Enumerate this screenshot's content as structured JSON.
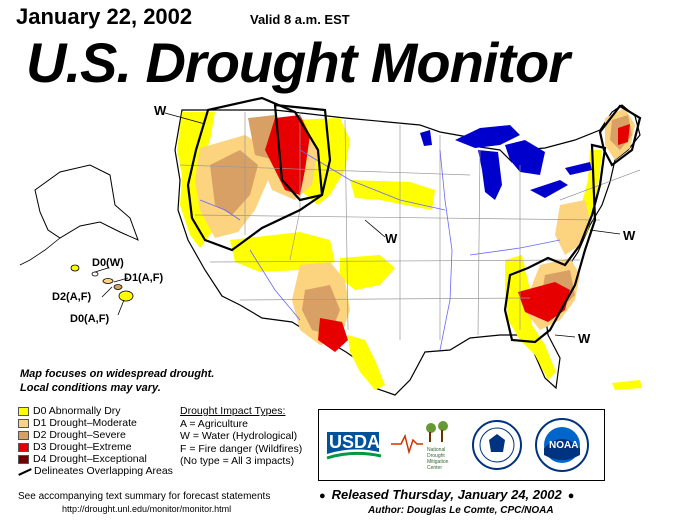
{
  "header": {
    "date": "January 22, 2002",
    "valid": "Valid 8 a.m. EST",
    "title": "U.S. Drought Monitor"
  },
  "map_labels": {
    "w_northwest": "W",
    "w_central": "W",
    "w_east": "W",
    "w_southeast": "W",
    "hawaii_d0w": "D0(W)",
    "hawaii_d1af": "D1(A,F)",
    "hawaii_d2af": "D2(A,F)",
    "hawaii_d0af": "D0(A,F)"
  },
  "note": {
    "line1": "Map focuses on widespread drought.",
    "line2": "Local conditions may vary."
  },
  "legend": [
    {
      "label": "D0 Abnormally Dry",
      "color": "#ffff00"
    },
    {
      "label": "D1 Drought–Moderate",
      "color": "#fcd37f"
    },
    {
      "label": "D2 Drought–Severe",
      "color": "#d9a066"
    },
    {
      "label": "D3 Drought–Extreme",
      "color": "#e60000"
    },
    {
      "label": "D4 Drought–Exceptional",
      "color": "#730000"
    }
  ],
  "legend_overlap": "Delineates Overlapping Areas",
  "impacts": {
    "header": "Drought Impact Types:",
    "a": "A = Agriculture",
    "w": "W = Water (Hydrological)",
    "f": "F = Fire danger (Wildfires)",
    "none": "(No type = All 3 impacts)"
  },
  "logos": {
    "usda": "USDA",
    "ndmc_line1": "National",
    "ndmc_line2": "Drought",
    "ndmc_line3": "Mitigation",
    "ndmc_line4": "Center",
    "noaa": "NOAA"
  },
  "footer": {
    "summary": "See accompanying text summary for forecast statements",
    "url": "http://drought.unl.edu/monitor/monitor.html",
    "released": "Released Thursday, January 24, 2002",
    "author": "Author:  Douglas Le Comte, CPC/NOAA"
  },
  "colors": {
    "water": "#0000cc",
    "land": "#ffffff",
    "state_lines": "#999999",
    "rivers": "#6666ff"
  }
}
